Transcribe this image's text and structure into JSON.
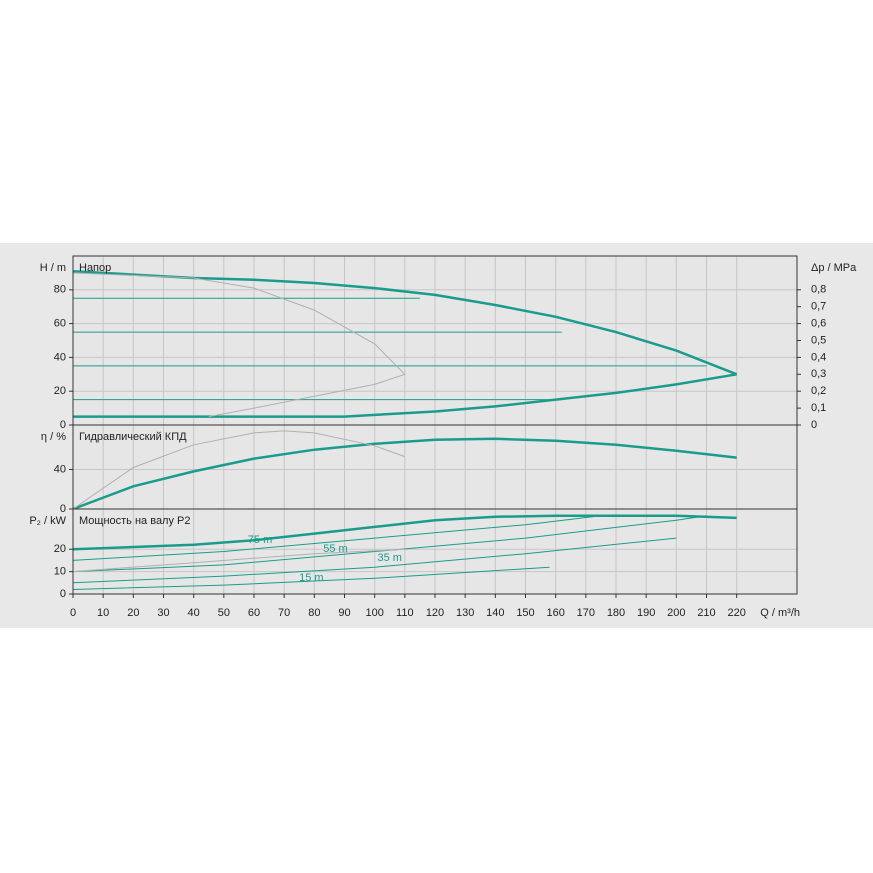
{
  "chart_data": [
    {
      "type": "line",
      "title": "Напор",
      "ylabel": "H / m",
      "y2label": "Δp / MPa",
      "xlim": [
        0,
        240
      ],
      "ylim": [
        0,
        100
      ],
      "yticks": [
        0,
        20,
        40,
        60,
        80
      ],
      "y2lim": [
        0,
        1.0
      ],
      "y2ticks": [
        0,
        {
          "value": 0.1,
          "label": "0,1"
        },
        {
          "value": 0.2,
          "label": "0,2"
        },
        {
          "value": 0.3,
          "label": "0,3"
        },
        {
          "value": 0.4,
          "label": "0,4"
        },
        {
          "value": 0.5,
          "label": "0,5"
        },
        {
          "value": 0.6,
          "label": "0,6"
        },
        {
          "value": 0.7,
          "label": "0,7"
        },
        {
          "value": 0.8,
          "label": "0,8"
        }
      ],
      "series": [
        {
          "color": "#1a9c8c",
          "line_width": 2.5,
          "x": [
            0,
            10,
            20,
            40,
            60,
            80,
            100,
            120,
            140,
            160,
            180,
            200,
            220
          ],
          "values": [
            91,
            90,
            89,
            87,
            86,
            84,
            81,
            77,
            71,
            64,
            55,
            44,
            30
          ]
        },
        {
          "color": "#1a9c8c",
          "line_width": 2.5,
          "x": [
            0,
            40,
            90,
            100,
            120,
            140,
            160,
            180,
            200,
            220
          ],
          "values": [
            5,
            5,
            5,
            6,
            8,
            11,
            15,
            19,
            24,
            30
          ]
        },
        {
          "color": "#1a9c8c",
          "line_width": 1,
          "x": [
            0,
            115
          ],
          "values": [
            75,
            75
          ]
        },
        {
          "color": "#1a9c8c",
          "line_width": 1,
          "x": [
            0,
            162
          ],
          "values": [
            55,
            55
          ]
        },
        {
          "color": "#1a9c8c",
          "line_width": 1,
          "x": [
            0,
            210
          ],
          "values": [
            35,
            35
          ]
        },
        {
          "color": "#1a9c8c",
          "line_width": 1,
          "x": [
            0,
            162
          ],
          "values": [
            15,
            15
          ]
        },
        {
          "color": "#b0b0b0",
          "line_width": 1,
          "x": [
            0,
            40,
            60,
            80,
            100,
            110,
            100,
            80,
            60,
            45
          ],
          "values": [
            90,
            87,
            81,
            68,
            48,
            30,
            24,
            17,
            10,
            5
          ]
        }
      ]
    },
    {
      "type": "line",
      "title": "Гидравлический КПД",
      "ylabel": "η / %",
      "xlim": [
        0,
        240
      ],
      "ylim": [
        0,
        85
      ],
      "yticks": [
        0,
        40
      ],
      "series": [
        {
          "color": "#1a9c8c",
          "line_width": 2.5,
          "x": [
            0,
            20,
            40,
            60,
            80,
            100,
            120,
            140,
            160,
            180,
            200,
            220
          ],
          "values": [
            0,
            23,
            38,
            51,
            60,
            66,
            70,
            71,
            69,
            65,
            59,
            52
          ]
        },
        {
          "color": "#b0b0b0",
          "line_width": 1,
          "x": [
            0,
            20,
            40,
            60,
            70,
            80,
            100,
            110
          ],
          "values": [
            0,
            42,
            65,
            77,
            79,
            77,
            64,
            53
          ]
        }
      ]
    },
    {
      "type": "line",
      "title": "Мощность на валу P2",
      "ylabel": "P₂ / kW",
      "xlabel": "Q / m³/h",
      "xlim": [
        0,
        240
      ],
      "xticks": [
        0,
        10,
        20,
        30,
        40,
        50,
        60,
        70,
        80,
        90,
        100,
        110,
        120,
        130,
        140,
        150,
        160,
        170,
        180,
        190,
        200,
        210,
        220
      ],
      "ylim": [
        0,
        38
      ],
      "yticks": [
        0,
        10,
        20
      ],
      "series": [
        {
          "color": "#1a9c8c",
          "line_width": 2.5,
          "x": [
            0,
            40,
            60,
            80,
            100,
            120,
            140,
            160,
            180,
            200,
            220
          ],
          "values": [
            20,
            22,
            24,
            27,
            30,
            33,
            34.5,
            35,
            35,
            35,
            34
          ]
        },
        {
          "color": "#1a9c8c",
          "line_width": 1,
          "x": [
            0,
            50,
            100,
            150,
            175
          ],
          "values": [
            15,
            19,
            25,
            31,
            35
          ]
        },
        {
          "color": "#1a9c8c",
          "line_width": 1,
          "x": [
            0,
            50,
            100,
            150,
            200,
            210
          ],
          "values": [
            10,
            13,
            19,
            25,
            33,
            35
          ]
        },
        {
          "color": "#1a9c8c",
          "line_width": 1,
          "x": [
            0,
            50,
            100,
            150,
            200
          ],
          "values": [
            5,
            8,
            12,
            18,
            25
          ]
        },
        {
          "color": "#1a9c8c",
          "line_width": 1,
          "x": [
            0,
            50,
            100,
            158
          ],
          "values": [
            2,
            4,
            7,
            12
          ]
        },
        {
          "color": "#b0b0b0",
          "line_width": 1,
          "x": [
            0,
            40,
            80,
            110
          ],
          "values": [
            10,
            14,
            18,
            20
          ]
        }
      ],
      "annotations": [
        {
          "text": "75 m",
          "x": 62,
          "y": 24
        },
        {
          "text": "55 m",
          "x": 87,
          "y": 20
        },
        {
          "text": "35 m",
          "x": 105,
          "y": 16
        },
        {
          "text": "15 m",
          "x": 79,
          "y": 7
        }
      ]
    }
  ]
}
